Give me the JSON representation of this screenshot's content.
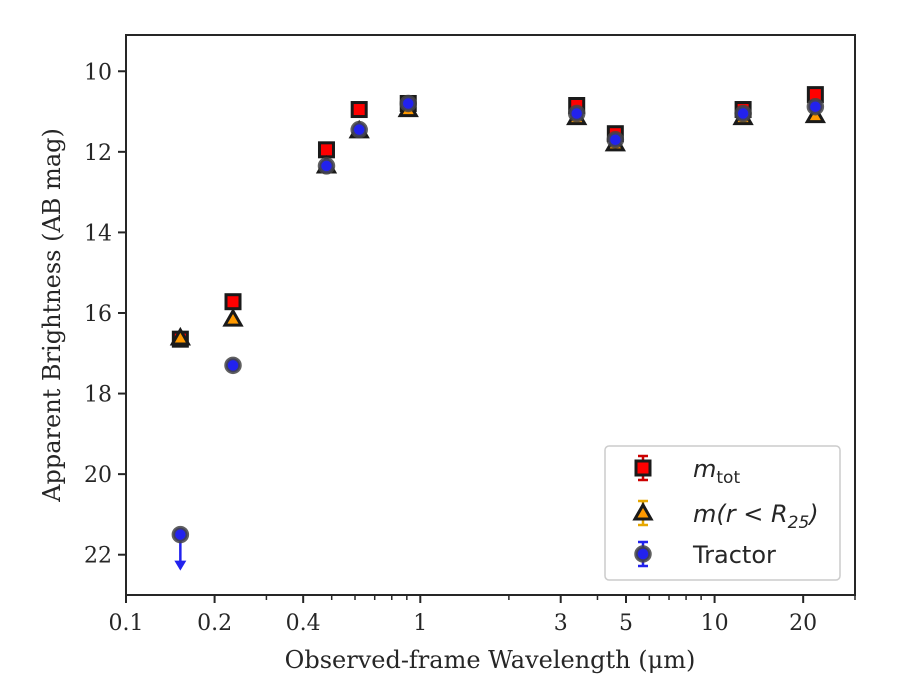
{
  "chart_data": {
    "type": "scatter",
    "xlabel": "Observed-frame Wavelength (μm)",
    "ylabel": "Apparent Brightness (AB mag)",
    "xscale": "log",
    "xlim": [
      0.1,
      30
    ],
    "ylim": [
      23,
      9.1
    ],
    "y_inverted": true,
    "xticks": [
      {
        "value": 0.1,
        "label": "0.1"
      },
      {
        "value": 0.2,
        "label": "0.2"
      },
      {
        "value": 0.4,
        "label": "0.4"
      },
      {
        "value": 1,
        "label": "1"
      },
      {
        "value": 3,
        "label": "3"
      },
      {
        "value": 5,
        "label": "5"
      },
      {
        "value": 10,
        "label": "10"
      },
      {
        "value": 20,
        "label": "20"
      }
    ],
    "yticks": [
      10,
      12,
      14,
      16,
      18,
      20,
      22
    ],
    "legend_position": "lower-right",
    "series": [
      {
        "name": "m_tot",
        "label_main": "m",
        "label_sub": "tot",
        "marker": "square",
        "fill": "#ff0000",
        "edge": "#1a1a1a",
        "errcolor": "#cc0000",
        "points": [
          {
            "x": 0.153,
            "y": 16.65
          },
          {
            "x": 0.231,
            "y": 15.72
          },
          {
            "x": 0.48,
            "y": 11.95
          },
          {
            "x": 0.62,
            "y": 10.95
          },
          {
            "x": 0.91,
            "y": 10.8
          },
          {
            "x": 3.4,
            "y": 10.85
          },
          {
            "x": 4.6,
            "y": 11.55
          },
          {
            "x": 12.5,
            "y": 10.95
          },
          {
            "x": 22.0,
            "y": 10.58
          }
        ]
      },
      {
        "name": "m(r<R_25)",
        "label_main": "m(r < R",
        "label_sub": "25",
        "label_end": ")",
        "marker": "triangle",
        "fill": "#ff9900",
        "edge": "#1a1a1a",
        "errcolor": "#e6a700",
        "points": [
          {
            "x": 0.153,
            "y": 16.62
          },
          {
            "x": 0.231,
            "y": 16.15
          },
          {
            "x": 0.48,
            "y": 12.35
          },
          {
            "x": 0.62,
            "y": 11.48
          },
          {
            "x": 0.91,
            "y": 10.95
          },
          {
            "x": 3.4,
            "y": 11.15
          },
          {
            "x": 4.6,
            "y": 11.8
          },
          {
            "x": 12.5,
            "y": 11.15
          },
          {
            "x": 22.0,
            "y": 11.1
          }
        ]
      },
      {
        "name": "Tractor",
        "marker": "circle",
        "fill": "#2222ee",
        "edge": "#444444",
        "errcolor": "#2222ee",
        "points": [
          {
            "x": 0.153,
            "y": 21.5,
            "upper_limit": true
          },
          {
            "x": 0.231,
            "y": 17.3
          },
          {
            "x": 0.48,
            "y": 12.35
          },
          {
            "x": 0.62,
            "y": 11.45
          },
          {
            "x": 0.91,
            "y": 10.8
          },
          {
            "x": 3.4,
            "y": 11.05
          },
          {
            "x": 4.6,
            "y": 11.7
          },
          {
            "x": 12.5,
            "y": 11.05
          },
          {
            "x": 22.0,
            "y": 10.88
          }
        ]
      }
    ]
  }
}
